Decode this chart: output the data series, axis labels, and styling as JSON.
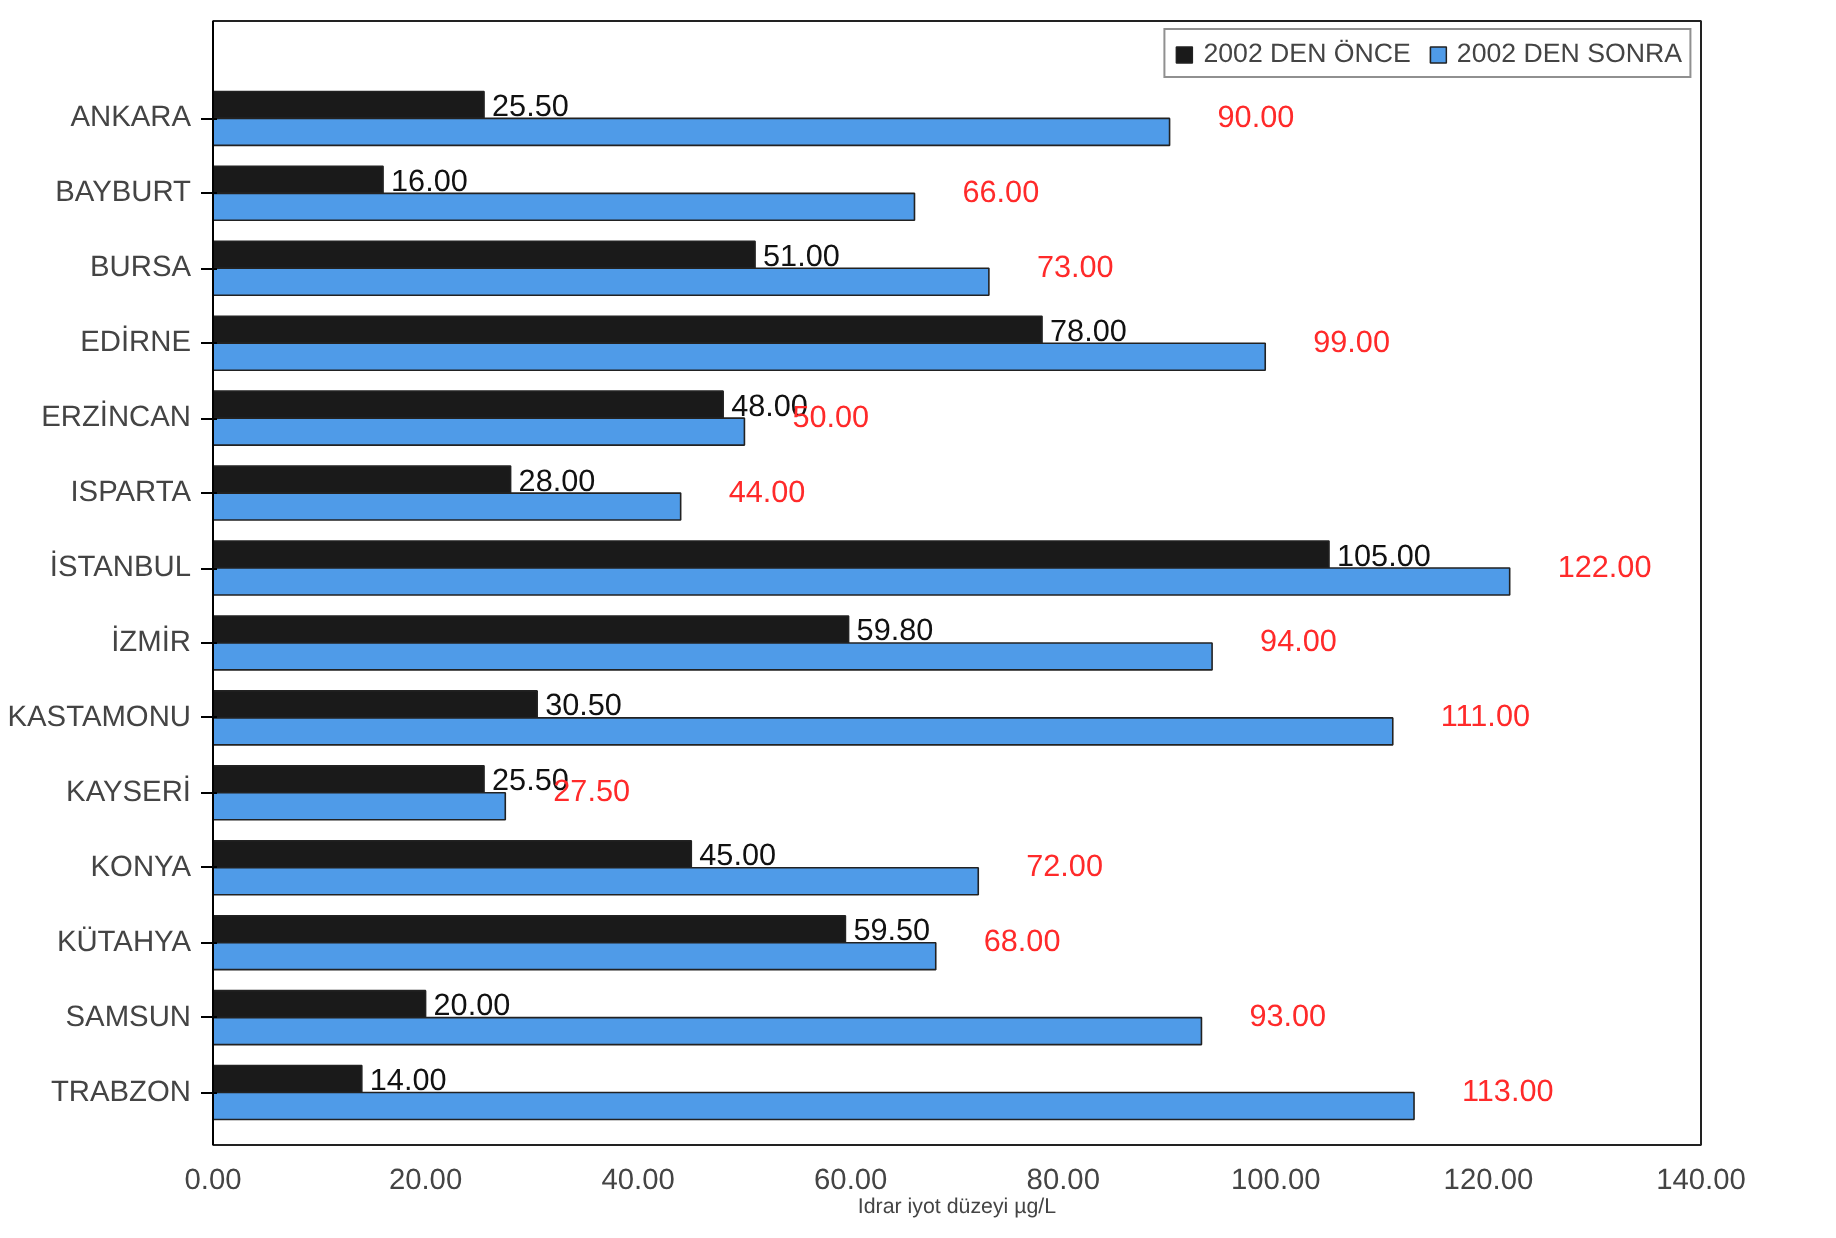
{
  "chart_data": {
    "type": "bar",
    "orientation": "horizontal",
    "categories": [
      "ANKARA",
      "BAYBURT",
      "BURSA",
      "EDİRNE",
      "ERZİNCAN",
      "ISPARTA",
      "İSTANBUL",
      "İZMİR",
      "KASTAMONU",
      "KAYSERİ",
      "KONYA",
      "KÜTAHYA",
      "SAMSUN",
      "TRABZON"
    ],
    "series": [
      {
        "name": "2002 DEN ÖNCE",
        "color": "#1a1a1a",
        "values": [
          25.5,
          16,
          51,
          78,
          48,
          28,
          105,
          59.8,
          30.5,
          25.5,
          45,
          59.5,
          20,
          14
        ],
        "value_labels": [
          "25.50",
          "16.00",
          "51.00",
          "78.00",
          "48.00",
          "28.00",
          "105.00",
          "59.80",
          "30.50",
          "25.50",
          "45.00",
          "59.50",
          "20.00",
          "14.00"
        ]
      },
      {
        "name": "2002 DEN SONRA",
        "color": "#4f9be8",
        "values": [
          90,
          66,
          73,
          99,
          50,
          44,
          122,
          94,
          111,
          27.5,
          72,
          68,
          93,
          113
        ],
        "value_labels": [
          "90.00",
          "66.00",
          "73.00",
          "99.00",
          "50.00",
          "44.00",
          "122.00",
          "94.00",
          "111.00",
          "27.50",
          "72.00",
          "68.00",
          "93.00",
          "113.00"
        ]
      }
    ],
    "xlabel": "Idrar iyot düzeyi µg/L",
    "xlim": [
      0,
      140
    ],
    "xticks": [
      {
        "value": 0,
        "label": "0.00"
      },
      {
        "value": 20,
        "label": "20.00"
      },
      {
        "value": 40,
        "label": "40.00"
      },
      {
        "value": 60,
        "label": "60.00"
      },
      {
        "value": 80,
        "label": "80.00"
      },
      {
        "value": 100,
        "label": "100.00"
      },
      {
        "value": 120,
        "label": "120.00"
      },
      {
        "value": 140,
        "label": "140.00"
      }
    ],
    "grid": false,
    "legend": "top right"
  }
}
